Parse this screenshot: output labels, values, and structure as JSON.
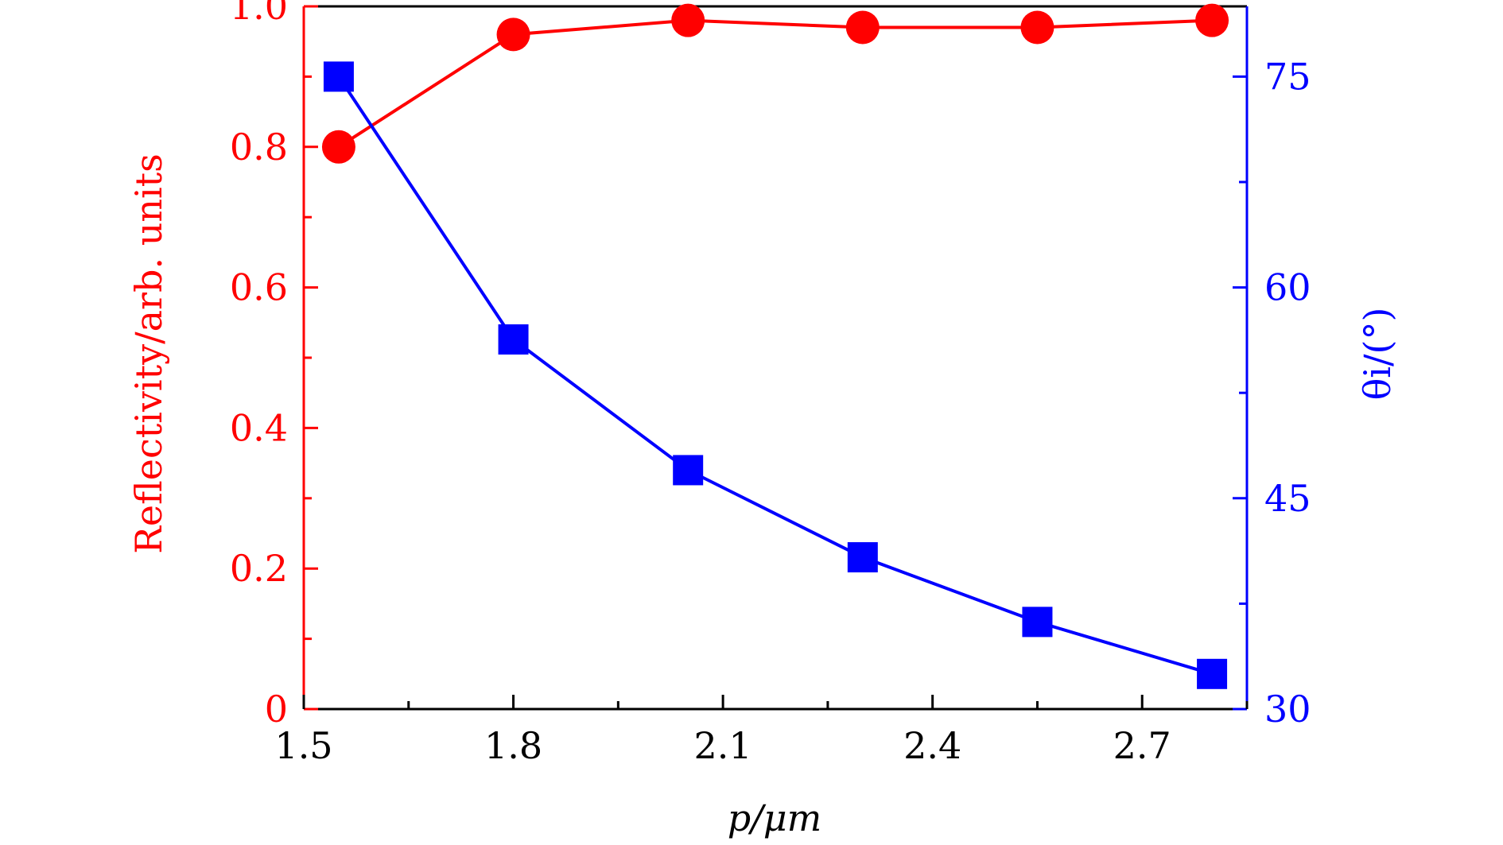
{
  "chart_data": {
    "type": "line",
    "x": [
      1.55,
      1.8,
      2.05,
      2.3,
      2.55,
      2.8
    ],
    "xlabel": "p/μm",
    "xlim": [
      1.5,
      2.85
    ],
    "xticks": [
      "1.5",
      "1.8",
      "2.1",
      "2.4",
      "2.7"
    ],
    "ylabel_left": "Reflectivity/arb. units",
    "ylim_left": [
      0,
      1.0
    ],
    "yticks_left": [
      "0",
      "0.2",
      "0.4",
      "0.6",
      "0.8",
      "1.0"
    ],
    "ylabel_right": "θi/(°)",
    "ylim_right": [
      30,
      80
    ],
    "yticks_right": [
      "30",
      "45",
      "60",
      "75"
    ],
    "grid": false,
    "series": [
      {
        "axis": "left",
        "marker": "circle",
        "color": "#ff0000",
        "values": [
          0.8,
          0.96,
          0.98,
          0.97,
          0.97,
          0.98
        ]
      },
      {
        "axis": "right",
        "marker": "square",
        "color": "#0000ff",
        "values": [
          75.0,
          56.3,
          47.0,
          40.8,
          36.2,
          32.5
        ]
      }
    ]
  }
}
